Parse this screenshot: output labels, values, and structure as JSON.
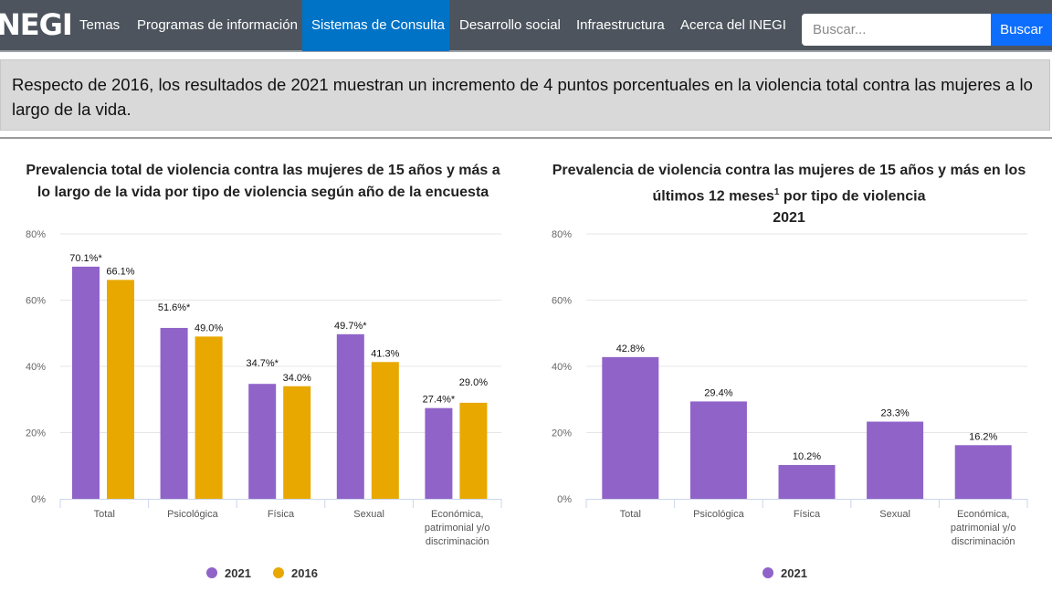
{
  "nav": {
    "logo": "INEGI",
    "items": [
      "Temas",
      "Programas de información",
      "Sistemas de Consulta",
      "Desarrollo social",
      "Infraestructura",
      "Acerca del INEGI"
    ],
    "active": "Sistemas de Consulta",
    "search_placeholder": "Buscar...",
    "search_button": "Buscar"
  },
  "banner": "Respecto de 2016, los resultados de 2021 muestran un incremento de 4 puntos porcentuales en la violencia total contra las mujeres a lo largo de la vida.",
  "chart_data": [
    {
      "type": "bar",
      "title_lines": [
        "Prevalencia total de violencia contra las mujeres de 15 años y más a",
        "lo largo de la vida por tipo de violencia según año de la encuesta"
      ],
      "categories": [
        [
          "Total"
        ],
        [
          "Psicológica"
        ],
        [
          "Física"
        ],
        [
          "Sexual"
        ],
        [
          "Económica,",
          "patrimonial y/o",
          "discriminación"
        ]
      ],
      "yticks": [
        "0%",
        "20%",
        "40%",
        "60%",
        "80%"
      ],
      "ylim": [
        0,
        80
      ],
      "grid": true,
      "legend": "bottom",
      "series": [
        {
          "name": "2021",
          "color": "#9063c9",
          "values": [
            70.1,
            51.6,
            34.7,
            49.7,
            27.4
          ],
          "labels": [
            "70.1%*",
            "51.6%*",
            "34.7%*",
            "49.7%*",
            "27.4%*"
          ]
        },
        {
          "name": "2016",
          "color": "#e8a800",
          "values": [
            66.1,
            49.0,
            34.0,
            41.3,
            29.0
          ],
          "labels": [
            "66.1%",
            "49.0%",
            "34.0%",
            "41.3%",
            "29.0%"
          ]
        }
      ]
    },
    {
      "type": "bar",
      "title_lines": [
        "Prevalencia de violencia contra las mujeres de 15 años y más en los",
        "últimos 12 meses",
        "1",
        " por tipo de violencia",
        "2021"
      ],
      "categories": [
        [
          "Total"
        ],
        [
          "Psicológica"
        ],
        [
          "Física"
        ],
        [
          "Sexual"
        ],
        [
          "Económica,",
          "patrimonial y/o",
          "discriminación"
        ]
      ],
      "yticks": [
        "0%",
        "20%",
        "40%",
        "60%",
        "80%"
      ],
      "ylim": [
        0,
        80
      ],
      "grid": true,
      "legend": "bottom",
      "series": [
        {
          "name": "2021",
          "color": "#9063c9",
          "values": [
            42.8,
            29.4,
            10.2,
            23.3,
            16.2
          ],
          "labels": [
            "42.8%",
            "29.4%",
            "10.2%",
            "23.3%",
            "16.2%"
          ]
        }
      ]
    }
  ]
}
